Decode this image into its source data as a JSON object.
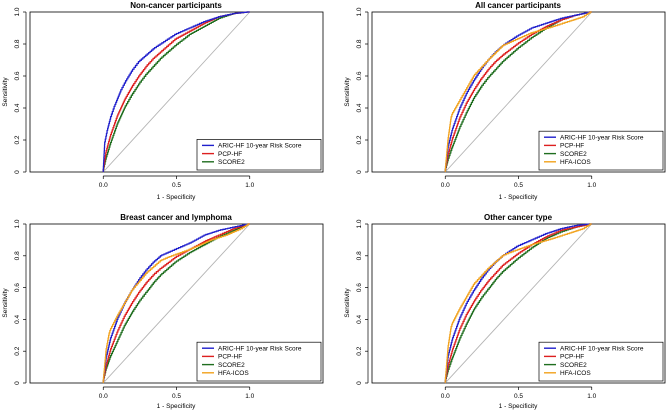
{
  "series_colors": {
    "ARIC-HF 10-year Risk Score": "#1f1fcc",
    "PCP-HF": "#dd1f1f",
    "SCORE2": "#1f6e1f",
    "HFA-ICOS": "#f2a21c"
  },
  "chart_data": [
    {
      "type": "line",
      "title": "Non-cancer participants",
      "xlabel": "1 - Specificity",
      "ylabel": "Sensitivity",
      "xlim": [
        -0.5,
        1.5
      ],
      "ylim": [
        0,
        1
      ],
      "xticks": [
        "0.0",
        "0.5",
        "1.0"
      ],
      "yticks": [
        "0",
        "0.2",
        "0.4",
        "0.6",
        "0.8",
        "1.0"
      ],
      "legend": "bottom-right",
      "reference_line": "diagonal",
      "series": [
        {
          "name": "ARIC-HF 10-year Risk Score",
          "x": [
            0,
            0.01,
            0.03,
            0.05,
            0.08,
            0.12,
            0.16,
            0.2,
            0.25,
            0.3,
            0.35,
            0.4,
            0.5,
            0.6,
            0.7,
            0.8,
            0.9,
            1.0
          ],
          "y": [
            0,
            0.17,
            0.26,
            0.33,
            0.41,
            0.5,
            0.57,
            0.63,
            0.69,
            0.73,
            0.77,
            0.8,
            0.86,
            0.9,
            0.94,
            0.97,
            0.99,
            1.0
          ]
        },
        {
          "name": "PCP-HF",
          "x": [
            0,
            0.02,
            0.05,
            0.1,
            0.15,
            0.2,
            0.25,
            0.3,
            0.35,
            0.4,
            0.5,
            0.6,
            0.7,
            0.8,
            0.9,
            1.0
          ],
          "y": [
            0,
            0.12,
            0.22,
            0.35,
            0.45,
            0.53,
            0.6,
            0.66,
            0.71,
            0.75,
            0.83,
            0.88,
            0.93,
            0.97,
            0.99,
            1.0
          ]
        },
        {
          "name": "SCORE2",
          "x": [
            0,
            0.02,
            0.05,
            0.1,
            0.15,
            0.2,
            0.25,
            0.3,
            0.35,
            0.4,
            0.5,
            0.6,
            0.7,
            0.8,
            0.9,
            1.0
          ],
          "y": [
            0,
            0.08,
            0.17,
            0.3,
            0.4,
            0.48,
            0.55,
            0.61,
            0.66,
            0.71,
            0.79,
            0.86,
            0.91,
            0.96,
            0.99,
            1.0
          ]
        }
      ]
    },
    {
      "type": "line",
      "title": "All cancer participants",
      "xlabel": "1 - Specificity",
      "ylabel": "Sensitivity",
      "xlim": [
        -0.5,
        1.5
      ],
      "ylim": [
        0,
        1
      ],
      "xticks": [
        "0.0",
        "0.5",
        "1.0"
      ],
      "yticks": [
        "0",
        "0.2",
        "0.4",
        "0.6",
        "0.8",
        "1.0"
      ],
      "legend": "bottom-right",
      "reference_line": "diagonal",
      "series": [
        {
          "name": "ARIC-HF 10-year Risk Score",
          "x": [
            0,
            0.02,
            0.05,
            0.1,
            0.15,
            0.2,
            0.25,
            0.3,
            0.35,
            0.4,
            0.5,
            0.6,
            0.7,
            0.8,
            0.9,
            1.0
          ],
          "y": [
            0,
            0.15,
            0.26,
            0.39,
            0.49,
            0.57,
            0.64,
            0.7,
            0.75,
            0.79,
            0.85,
            0.9,
            0.93,
            0.96,
            0.98,
            1.0
          ]
        },
        {
          "name": "PCP-HF",
          "x": [
            0,
            0.02,
            0.05,
            0.1,
            0.15,
            0.2,
            0.25,
            0.3,
            0.35,
            0.4,
            0.5,
            0.6,
            0.7,
            0.8,
            0.9,
            1.0
          ],
          "y": [
            0,
            0.1,
            0.2,
            0.33,
            0.43,
            0.51,
            0.58,
            0.64,
            0.69,
            0.73,
            0.8,
            0.86,
            0.91,
            0.95,
            0.98,
            1.0
          ]
        },
        {
          "name": "SCORE2",
          "x": [
            0,
            0.02,
            0.05,
            0.1,
            0.15,
            0.2,
            0.25,
            0.3,
            0.35,
            0.4,
            0.5,
            0.6,
            0.7,
            0.8,
            0.9,
            1.0
          ],
          "y": [
            0,
            0.07,
            0.15,
            0.27,
            0.37,
            0.46,
            0.53,
            0.59,
            0.64,
            0.69,
            0.77,
            0.84,
            0.9,
            0.95,
            0.98,
            1.0
          ]
        },
        {
          "name": "HFA-ICOS",
          "x": [
            0,
            0.02,
            0.04,
            0.05,
            0.1,
            0.2,
            0.3,
            0.4,
            0.45,
            0.6,
            0.75,
            0.85,
            0.95,
            1.0
          ],
          "y": [
            0,
            0.2,
            0.33,
            0.36,
            0.44,
            0.6,
            0.7,
            0.79,
            0.81,
            0.87,
            0.91,
            0.94,
            0.97,
            1.0
          ]
        }
      ]
    },
    {
      "type": "line",
      "title": "Breast cancer and lymphoma",
      "xlabel": "1 - Specificity",
      "ylabel": "Sensitivity",
      "xlim": [
        -0.5,
        1.5
      ],
      "ylim": [
        0,
        1
      ],
      "xticks": [
        "0.0",
        "0.5",
        "1.0"
      ],
      "yticks": [
        "0",
        "0.2",
        "0.4",
        "0.6",
        "0.8",
        "1.0"
      ],
      "legend": "bottom-right",
      "reference_line": "diagonal",
      "series": [
        {
          "name": "ARIC-HF 10-year Risk Score",
          "x": [
            0,
            0.02,
            0.05,
            0.1,
            0.15,
            0.2,
            0.25,
            0.3,
            0.35,
            0.4,
            0.5,
            0.6,
            0.7,
            0.8,
            0.9,
            1.0
          ],
          "y": [
            0,
            0.15,
            0.27,
            0.4,
            0.5,
            0.58,
            0.65,
            0.71,
            0.76,
            0.8,
            0.84,
            0.88,
            0.93,
            0.96,
            0.98,
            1.0
          ]
        },
        {
          "name": "PCP-HF",
          "x": [
            0,
            0.02,
            0.05,
            0.1,
            0.15,
            0.2,
            0.25,
            0.3,
            0.35,
            0.4,
            0.5,
            0.6,
            0.7,
            0.8,
            0.9,
            1.0
          ],
          "y": [
            0,
            0.1,
            0.2,
            0.32,
            0.42,
            0.5,
            0.57,
            0.63,
            0.68,
            0.72,
            0.79,
            0.84,
            0.89,
            0.93,
            0.97,
            1.0
          ]
        },
        {
          "name": "SCORE2",
          "x": [
            0,
            0.02,
            0.05,
            0.1,
            0.15,
            0.2,
            0.25,
            0.3,
            0.35,
            0.4,
            0.5,
            0.6,
            0.7,
            0.8,
            0.9,
            1.0
          ],
          "y": [
            0,
            0.08,
            0.16,
            0.26,
            0.36,
            0.44,
            0.51,
            0.57,
            0.63,
            0.68,
            0.76,
            0.82,
            0.87,
            0.92,
            0.96,
            1.0
          ]
        },
        {
          "name": "HFA-ICOS",
          "x": [
            0,
            0.02,
            0.04,
            0.05,
            0.1,
            0.2,
            0.3,
            0.4,
            0.45,
            0.6,
            0.75,
            0.85,
            0.95,
            1.0
          ],
          "y": [
            0,
            0.2,
            0.3,
            0.33,
            0.42,
            0.58,
            0.69,
            0.77,
            0.79,
            0.84,
            0.9,
            0.93,
            0.97,
            1.0
          ]
        }
      ]
    },
    {
      "type": "line",
      "title": "Other cancer type",
      "xlabel": "1 - Specificity",
      "ylabel": "Sensitivity",
      "xlim": [
        -0.5,
        1.5
      ],
      "ylim": [
        0,
        1
      ],
      "xticks": [
        "0.0",
        "0.5",
        "1.0"
      ],
      "yticks": [
        "0",
        "0.2",
        "0.4",
        "0.6",
        "0.8",
        "1.0"
      ],
      "legend": "bottom-right",
      "reference_line": "diagonal",
      "series": [
        {
          "name": "ARIC-HF 10-year Risk Score",
          "x": [
            0,
            0.02,
            0.05,
            0.1,
            0.15,
            0.2,
            0.25,
            0.3,
            0.35,
            0.4,
            0.5,
            0.6,
            0.7,
            0.8,
            0.9,
            1.0
          ],
          "y": [
            0,
            0.16,
            0.27,
            0.4,
            0.5,
            0.58,
            0.65,
            0.71,
            0.76,
            0.8,
            0.86,
            0.9,
            0.94,
            0.97,
            0.99,
            1.0
          ]
        },
        {
          "name": "PCP-HF",
          "x": [
            0,
            0.02,
            0.05,
            0.1,
            0.15,
            0.2,
            0.25,
            0.3,
            0.35,
            0.4,
            0.5,
            0.6,
            0.7,
            0.8,
            0.9,
            1.0
          ],
          "y": [
            0,
            0.1,
            0.2,
            0.33,
            0.43,
            0.51,
            0.58,
            0.64,
            0.69,
            0.74,
            0.81,
            0.87,
            0.92,
            0.96,
            0.98,
            1.0
          ]
        },
        {
          "name": "SCORE2",
          "x": [
            0,
            0.02,
            0.05,
            0.1,
            0.15,
            0.2,
            0.25,
            0.3,
            0.35,
            0.4,
            0.5,
            0.6,
            0.7,
            0.8,
            0.9,
            1.0
          ],
          "y": [
            0,
            0.07,
            0.15,
            0.27,
            0.37,
            0.46,
            0.53,
            0.59,
            0.65,
            0.7,
            0.78,
            0.85,
            0.91,
            0.95,
            0.98,
            1.0
          ]
        },
        {
          "name": "HFA-ICOS",
          "x": [
            0,
            0.02,
            0.04,
            0.05,
            0.1,
            0.2,
            0.3,
            0.4,
            0.45,
            0.6,
            0.75,
            0.85,
            0.95,
            1.0
          ],
          "y": [
            0,
            0.22,
            0.34,
            0.37,
            0.46,
            0.62,
            0.72,
            0.8,
            0.82,
            0.87,
            0.91,
            0.94,
            0.97,
            1.0
          ]
        }
      ]
    }
  ]
}
